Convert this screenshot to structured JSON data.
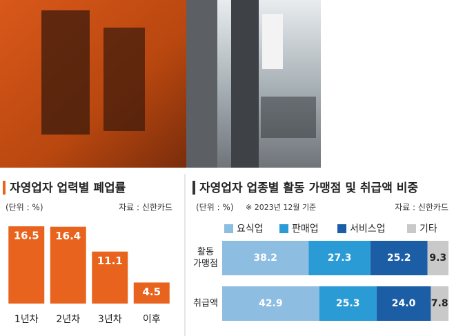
{
  "chart_data": [
    {
      "type": "bar",
      "title": "자영업자 업력별 폐업률",
      "unit": "(단위 : %)",
      "source": "자료 : 신한카드",
      "categories": [
        "1년차",
        "2년차",
        "3년차",
        "이후"
      ],
      "values": [
        16.5,
        16.4,
        11.1,
        4.5
      ],
      "color": "#e8641e",
      "ylim": [
        0,
        17
      ]
    },
    {
      "type": "hbar-stacked",
      "title": "자영업자 업종별 활동 가맹점 및 취급액 비중",
      "unit": "(단위 : %)",
      "note": "※ 2023년 12월 기준",
      "source": "자료 : 신한카드",
      "categories": [
        "활동\n가맹점",
        "취급액"
      ],
      "xlim": [
        0,
        100
      ],
      "series": [
        {
          "name": "요식업",
          "color": "#8ebde2",
          "values": [
            38.2,
            42.9
          ]
        },
        {
          "name": "판매업",
          "color": "#2b9bd6",
          "values": [
            27.3,
            25.3
          ]
        },
        {
          "name": "서비스업",
          "color": "#1c5ea6",
          "values": [
            25.2,
            24
          ],
          "value_labels": [
            "25.2",
            "24.0"
          ]
        },
        {
          "name": "기타",
          "color": "#c9c9c9",
          "values": [
            9.3,
            7.8
          ]
        }
      ]
    }
  ]
}
